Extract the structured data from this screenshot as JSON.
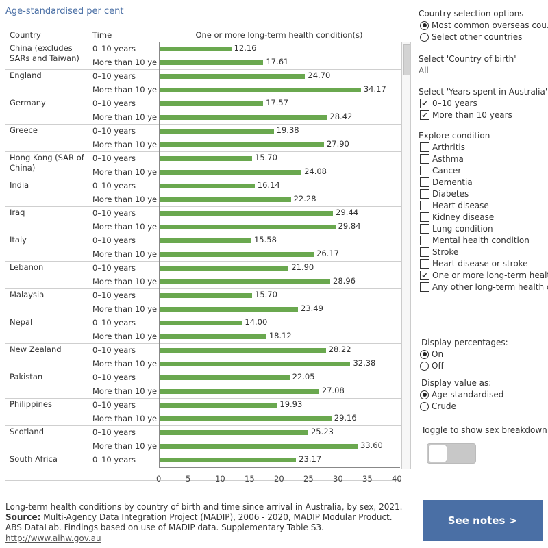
{
  "title": "Age-standardised per cent",
  "table": {
    "country_header": "Country",
    "time_header": "Time",
    "measure_header": "One or more long-term health condition(s)",
    "axis_ticks": [
      "0",
      "5",
      "10",
      "15",
      "20",
      "25",
      "30",
      "35",
      "40"
    ],
    "rows": [
      {
        "country": "China (excludes SARs and Taiwan)",
        "times": [
          "0–10 years",
          "More than 10 ye.."
        ],
        "labels": [
          "12.16",
          "17.61"
        ]
      },
      {
        "country": "England",
        "times": [
          "0–10 years",
          "More than 10 ye.."
        ],
        "labels": [
          "24.70",
          "34.17"
        ]
      },
      {
        "country": "Germany",
        "times": [
          "0–10 years",
          "More than 10 ye.."
        ],
        "labels": [
          "17.57",
          "28.42"
        ]
      },
      {
        "country": "Greece",
        "times": [
          "0–10 years",
          "More than 10 ye.."
        ],
        "labels": [
          "19.38",
          "27.90"
        ]
      },
      {
        "country": "Hong Kong (SAR of China)",
        "times": [
          "0–10 years",
          "More than 10 ye.."
        ],
        "labels": [
          "15.70",
          "24.08"
        ]
      },
      {
        "country": "India",
        "times": [
          "0–10 years",
          "More than 10 ye.."
        ],
        "labels": [
          "16.14",
          "22.28"
        ]
      },
      {
        "country": "Iraq",
        "times": [
          "0–10 years",
          "More than 10 ye.."
        ],
        "labels": [
          "29.44",
          "29.84"
        ]
      },
      {
        "country": "Italy",
        "times": [
          "0–10 years",
          "More than 10 ye.."
        ],
        "labels": [
          "15.58",
          "26.17"
        ]
      },
      {
        "country": "Lebanon",
        "times": [
          "0–10 years",
          "More than 10 ye.."
        ],
        "labels": [
          "21.90",
          "28.96"
        ]
      },
      {
        "country": "Malaysia",
        "times": [
          "0–10 years",
          "More than 10 ye.."
        ],
        "labels": [
          "15.70",
          "23.49"
        ]
      },
      {
        "country": "Nepal",
        "times": [
          "0–10 years",
          "More than 10 ye.."
        ],
        "labels": [
          "14.00",
          "18.12"
        ]
      },
      {
        "country": "New Zealand",
        "times": [
          "0–10 years",
          "More than 10 ye.."
        ],
        "labels": [
          "28.22",
          "32.38"
        ]
      },
      {
        "country": "Pakistan",
        "times": [
          "0–10 years",
          "More than 10 ye.."
        ],
        "labels": [
          "22.05",
          "27.08"
        ]
      },
      {
        "country": "Philippines",
        "times": [
          "0–10 years",
          "More than 10 ye.."
        ],
        "labels": [
          "19.93",
          "29.16"
        ]
      },
      {
        "country": "Scotland",
        "times": [
          "0–10 years",
          "More than 10 ye.."
        ],
        "labels": [
          "25.23",
          "33.60"
        ]
      },
      {
        "country": "South Africa",
        "times": [
          "0–10 years"
        ],
        "labels": [
          "23.17"
        ]
      }
    ]
  },
  "chart_data": {
    "type": "bar",
    "orientation": "horizontal",
    "measure": "One or more long-term health condition(s)",
    "xlim": [
      0,
      40
    ],
    "bar_color": "#6aa84f",
    "categories": [
      "China (excludes SARs and Taiwan)",
      "England",
      "Germany",
      "Greece",
      "Hong Kong (SAR of China)",
      "India",
      "Iraq",
      "Italy",
      "Lebanon",
      "Malaysia",
      "Nepal",
      "New Zealand",
      "Pakistan",
      "Philippines",
      "Scotland",
      "South Africa"
    ],
    "series": [
      {
        "name": "0–10 years",
        "values": [
          12.16,
          24.7,
          17.57,
          19.38,
          15.7,
          16.14,
          29.44,
          15.58,
          21.9,
          15.7,
          14.0,
          28.22,
          22.05,
          19.93,
          25.23,
          23.17
        ]
      },
      {
        "name": "More than 10 ye..",
        "values": [
          17.61,
          34.17,
          28.42,
          27.9,
          24.08,
          22.28,
          29.84,
          26.17,
          28.96,
          23.49,
          18.12,
          32.38,
          27.08,
          29.16,
          33.6,
          null
        ]
      }
    ]
  },
  "controls": {
    "selection_options": {
      "heading": "Country selection options",
      "options": [
        {
          "label": "Most common overseas cou..",
          "selected": true
        },
        {
          "label": "Select other countries",
          "selected": false
        }
      ]
    },
    "country_of_birth": {
      "heading": "Select 'Country of birth'",
      "value": "All"
    },
    "years_in_australia": {
      "heading": "Select 'Years spent in Australia'",
      "options": [
        {
          "label": "0–10 years",
          "checked": true
        },
        {
          "label": "More than 10 years",
          "checked": true
        }
      ]
    },
    "explore_condition": {
      "heading": "Explore condition",
      "options": [
        {
          "label": "Arthritis",
          "checked": false
        },
        {
          "label": "Asthma",
          "checked": false
        },
        {
          "label": "Cancer",
          "checked": false
        },
        {
          "label": "Dementia",
          "checked": false
        },
        {
          "label": "Diabetes",
          "checked": false
        },
        {
          "label": "Heart disease",
          "checked": false
        },
        {
          "label": "Kidney disease",
          "checked": false
        },
        {
          "label": "Lung condition",
          "checked": false
        },
        {
          "label": "Mental health condition",
          "checked": false
        },
        {
          "label": "Stroke",
          "checked": false
        },
        {
          "label": "Heart disease or stroke",
          "checked": false
        },
        {
          "label": "One or more long-term healt..",
          "checked": true
        },
        {
          "label": "Any other long-term health c..",
          "checked": false
        }
      ]
    },
    "display_percentages": {
      "heading": "Display percentages:",
      "options": [
        {
          "label": "On",
          "selected": true
        },
        {
          "label": "Off",
          "selected": false
        }
      ]
    },
    "display_value": {
      "heading": "Display value as:",
      "options": [
        {
          "label": "Age-standardised",
          "selected": true
        },
        {
          "label": "Crude",
          "selected": false
        }
      ]
    },
    "toggle": {
      "heading": "Toggle to show sex breakdown",
      "on": false
    }
  },
  "footer": {
    "caption": "Long-term health conditions by country of birth and time since arrival in Australia, by sex, 2021.",
    "source_label": "Source:",
    "source_text": " Multi-Agency Data Integration Project (MADIP), 2006 - 2020, MADIP Modular Product. ABS DataLab. Findings based on use of MADIP data. Supplementary Table S3.",
    "link": "http://www.aihw.gov.au"
  },
  "notes_button": "See notes >"
}
